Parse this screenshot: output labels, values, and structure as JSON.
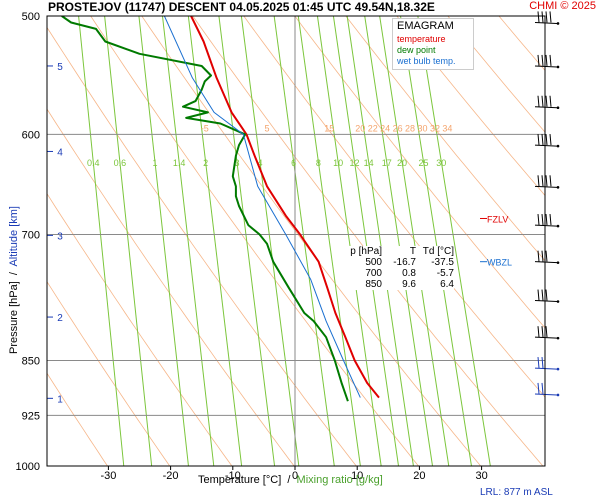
{
  "header": {
    "title": "PROSTEJOV (11747)   DESCENT   04.05.2025 01:45 UTC   49.54N,18.32E",
    "copyright": "CHMI © 2025"
  },
  "legend": {
    "title": "EMAGRAM",
    "items": [
      {
        "label": "temperature",
        "color": "#e00000"
      },
      {
        "label": "dew point",
        "color": "#007a00"
      },
      {
        "label": "wet bulb temp.",
        "color": "#1a6fd0"
      }
    ]
  },
  "levels_table": {
    "headers": [
      "p [hPa]",
      "T",
      "Td [°C]"
    ],
    "rows": [
      [
        "500",
        "-16.7",
        "-37.5"
      ],
      [
        "700",
        "0.8",
        "-5.7"
      ],
      [
        "850",
        "9.6",
        "6.4"
      ]
    ]
  },
  "markers": {
    "fzlv": "FZLV",
    "wbzl": "WBZL"
  },
  "footer": {
    "lrl": "LRL: 877 m ASL"
  },
  "axis_titles": {
    "x_temperature": "Temperature [°C]",
    "x_sep": "  /  ",
    "x_mixing": "Mixing ratio [g/kg]",
    "y_pressure": "Pressure [hPa]",
    "y_sep": "  /  ",
    "y_altitude": "Altitude [km]"
  },
  "colors": {
    "temperature": "#e00000",
    "dewpoint": "#007a00",
    "wetbulb": "#1a6fd0",
    "mixing_ratio": "#7cc63c",
    "dry_adiabat": "#f4a46c",
    "grid": "#8a8a8a",
    "altitude": "#1a3bb5"
  },
  "chart_data": {
    "type": "line",
    "title": "EMAGRAM",
    "xlabel": "Temperature [°C] / Mixing ratio [g/kg]",
    "ylabel": "Pressure [hPa] / Altitude [km]",
    "xlim": [
      -40,
      40
    ],
    "ylim": [
      1000,
      500
    ],
    "y_scale": "log",
    "x_ticks": [
      "-30",
      "-20",
      "-10",
      "0",
      "10",
      "20",
      "30"
    ],
    "pressure_ticks": [
      "500",
      "600",
      "700",
      "850",
      "925",
      "1000"
    ],
    "altitude_ticks": [
      {
        "label": "1",
        "p": 901
      },
      {
        "label": "2",
        "p": 795
      },
      {
        "label": "3",
        "p": 701
      },
      {
        "label": "4",
        "p": 616
      },
      {
        "label": "5",
        "p": 540
      }
    ],
    "mixing_ratio_labels": [
      "0.4",
      "0.6",
      "1",
      "1.4",
      "2",
      "3",
      "4",
      "6",
      "8",
      "10",
      "12",
      "14",
      "17",
      "20",
      "25",
      "30"
    ],
    "mixing_ratio_values": [
      0.4,
      0.6,
      1,
      1.4,
      2,
      3,
      4,
      6,
      8,
      10,
      12,
      14,
      17,
      20,
      25,
      30
    ],
    "dry_adiabat_labels": [
      "-5",
      "5",
      "15",
      "20",
      "22",
      "24",
      "26",
      "28",
      "30",
      "32",
      "34"
    ],
    "series": [
      {
        "name": "temperature",
        "points": [
          {
            "p": 500,
            "t": -16.7
          },
          {
            "p": 520,
            "t": -14.7
          },
          {
            "p": 550,
            "t": -12.6
          },
          {
            "p": 580,
            "t": -10.2
          },
          {
            "p": 600,
            "t": -7.8
          },
          {
            "p": 620,
            "t": -6.5
          },
          {
            "p": 650,
            "t": -4.5
          },
          {
            "p": 680,
            "t": -1.5
          },
          {
            "p": 700,
            "t": 0.8
          },
          {
            "p": 730,
            "t": 3.8
          },
          {
            "p": 760,
            "t": 5.2
          },
          {
            "p": 790,
            "t": 6.5
          },
          {
            "p": 820,
            "t": 8.1
          },
          {
            "p": 850,
            "t": 9.6
          },
          {
            "p": 880,
            "t": 11.6
          },
          {
            "p": 900,
            "t": 13.5
          }
        ]
      },
      {
        "name": "dew point",
        "points": [
          {
            "p": 500,
            "t": -37.5
          },
          {
            "p": 505,
            "t": -36
          },
          {
            "p": 510,
            "t": -32
          },
          {
            "p": 520,
            "t": -30.5
          },
          {
            "p": 530,
            "t": -25
          },
          {
            "p": 540,
            "t": -15
          },
          {
            "p": 548,
            "t": -13.5
          },
          {
            "p": 553,
            "t": -14.5
          },
          {
            "p": 560,
            "t": -15
          },
          {
            "p": 570,
            "t": -16
          },
          {
            "p": 575,
            "t": -18
          },
          {
            "p": 580,
            "t": -14
          },
          {
            "p": 585,
            "t": -17.5
          },
          {
            "p": 590,
            "t": -12
          },
          {
            "p": 600,
            "t": -8
          },
          {
            "p": 610,
            "t": -9
          },
          {
            "p": 620,
            "t": -9.5
          },
          {
            "p": 640,
            "t": -10
          },
          {
            "p": 650,
            "t": -9.5
          },
          {
            "p": 660,
            "t": -9.5
          },
          {
            "p": 670,
            "t": -9
          },
          {
            "p": 690,
            "t": -7.5
          },
          {
            "p": 700,
            "t": -5.7
          },
          {
            "p": 710,
            "t": -4.5
          },
          {
            "p": 730,
            "t": -3.5
          },
          {
            "p": 760,
            "t": -1
          },
          {
            "p": 790,
            "t": 1.5
          },
          {
            "p": 800,
            "t": 3
          },
          {
            "p": 820,
            "t": 5
          },
          {
            "p": 850,
            "t": 6.4
          },
          {
            "p": 880,
            "t": 7.5
          },
          {
            "p": 905,
            "t": 8.5
          }
        ]
      },
      {
        "name": "wet bulb temp.",
        "points": [
          {
            "p": 500,
            "t": -21
          },
          {
            "p": 550,
            "t": -16.5
          },
          {
            "p": 580,
            "t": -13
          },
          {
            "p": 600,
            "t": -8.3
          },
          {
            "p": 650,
            "t": -6
          },
          {
            "p": 700,
            "t": -1.5
          },
          {
            "p": 750,
            "t": 2.5
          },
          {
            "p": 800,
            "t": 5
          },
          {
            "p": 850,
            "t": 7.8
          },
          {
            "p": 900,
            "t": 10.5
          }
        ]
      }
    ]
  }
}
